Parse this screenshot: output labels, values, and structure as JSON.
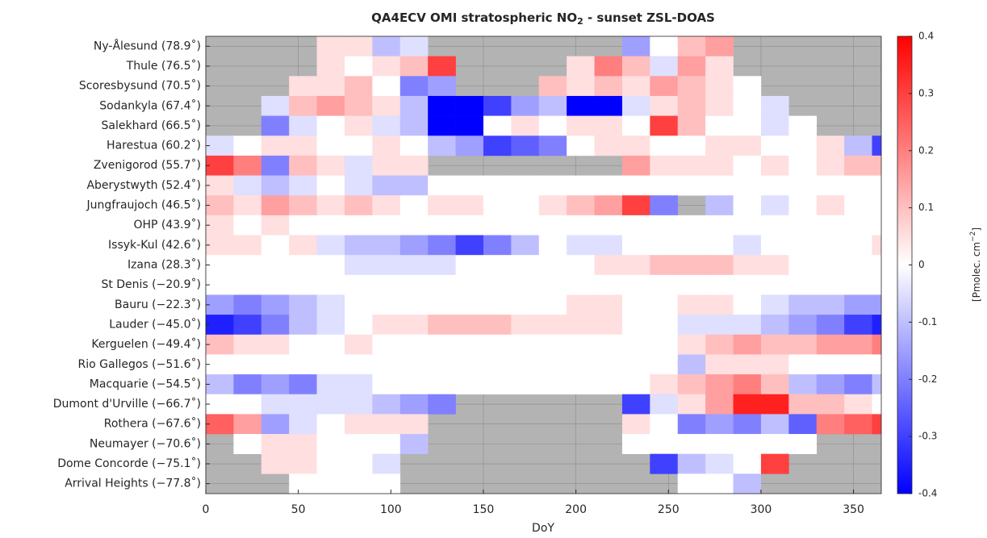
{
  "chart_data": {
    "type": "heatmap",
    "title": [
      "QA4ECV OMI stratospheric NO",
      "2",
      " - sunset ZSL-DOAS"
    ],
    "xlabel": "DoY",
    "colorbar_label": [
      "[Pmolec. cm",
      "−2",
      "]"
    ],
    "rows": [
      "Ny-Ålesund (78.9˚)",
      "Thule (76.5˚)",
      "Scoresbysund (70.5˚)",
      "Sodankyla (67.4˚)",
      "Salekhard (66.5˚)",
      "Harestua (60.2˚)",
      "Zvenigorod (55.7˚)",
      "Aberystwyth (52.4˚)",
      "Jungfraujoch (46.5˚)",
      "OHP (43.9˚)",
      "Issyk-Kul (42.6˚)",
      "Izana (28.3˚)",
      "St Denis (−20.9˚)",
      "Bauru (−22.3˚)",
      "Lauder (−45.0˚)",
      "Kerguelen (−49.4˚)",
      "Rio Gallegos (−51.6˚)",
      "Macquarie (−54.5˚)",
      "Dumont d'Urville (−66.7˚)",
      "Rothera (−67.6˚)",
      "Neumayer (−70.6˚)",
      "Dome Concorde (−75.1˚)",
      "Arrival Heights (−77.8˚)"
    ],
    "bins": [
      0,
      15,
      30,
      45,
      60,
      75,
      90,
      105,
      120,
      135,
      150,
      165,
      180,
      195,
      210,
      225,
      240,
      255,
      270,
      285,
      300,
      315,
      330,
      345,
      360,
      365
    ],
    "values": [
      [
        null,
        null,
        null,
        null,
        0.05,
        0.05,
        -0.1,
        -0.05,
        null,
        null,
        null,
        null,
        null,
        null,
        null,
        -0.15,
        0.0,
        0.1,
        0.15,
        null,
        null,
        null,
        null,
        null,
        null
      ],
      [
        null,
        null,
        null,
        null,
        0.05,
        0.0,
        0.05,
        0.1,
        0.3,
        null,
        null,
        null,
        null,
        0.05,
        0.2,
        0.1,
        -0.05,
        0.15,
        0.05,
        null,
        null,
        null,
        null,
        null,
        null
      ],
      [
        null,
        null,
        null,
        0.05,
        0.05,
        0.1,
        0.0,
        -0.2,
        -0.15,
        null,
        null,
        null,
        0.1,
        0.05,
        0.1,
        0.05,
        0.15,
        0.1,
        0.05,
        0.0,
        null,
        null,
        null,
        null,
        null
      ],
      [
        null,
        null,
        -0.05,
        0.1,
        0.15,
        0.1,
        0.05,
        -0.1,
        -0.4,
        -0.4,
        -0.3,
        -0.15,
        -0.1,
        -0.4,
        -0.4,
        -0.05,
        0.05,
        0.1,
        0.05,
        0.0,
        -0.05,
        null,
        null,
        null,
        null
      ],
      [
        null,
        null,
        -0.2,
        -0.05,
        0.0,
        0.05,
        -0.05,
        -0.1,
        -0.4,
        -0.4,
        0.0,
        0.05,
        0.0,
        0.05,
        0.05,
        0.0,
        0.3,
        0.1,
        0.0,
        0.0,
        -0.05,
        0.0,
        null,
        null,
        null
      ],
      [
        -0.05,
        0.0,
        0.05,
        0.05,
        0.0,
        0.0,
        0.05,
        0.0,
        -0.1,
        -0.15,
        -0.3,
        -0.25,
        -0.2,
        0.0,
        0.05,
        0.05,
        0.0,
        0.0,
        0.05,
        0.05,
        0.0,
        0.0,
        0.05,
        -0.1,
        -0.3
      ],
      [
        0.3,
        0.2,
        -0.2,
        0.1,
        0.05,
        -0.05,
        0.05,
        0.05,
        null,
        null,
        null,
        null,
        null,
        null,
        null,
        0.15,
        0.05,
        0.05,
        0.05,
        0.0,
        0.05,
        0.0,
        0.05,
        0.1,
        0.1
      ],
      [
        0.05,
        -0.05,
        -0.1,
        -0.05,
        0.0,
        -0.05,
        -0.1,
        -0.1,
        0.0,
        0.0,
        0.0,
        0.0,
        0.0,
        0.0,
        0.0,
        0.0,
        0.0,
        0.0,
        0.0,
        0.0,
        0.0,
        0.0,
        0.0,
        0.0,
        0.0
      ],
      [
        0.1,
        0.05,
        0.15,
        0.1,
        0.05,
        0.1,
        0.05,
        0.0,
        0.05,
        0.05,
        0.0,
        0.0,
        0.05,
        0.1,
        0.15,
        0.3,
        -0.2,
        null,
        -0.1,
        0.0,
        -0.05,
        0.0,
        0.05,
        0.0,
        0.0
      ],
      [
        0.05,
        0.0,
        0.05,
        0.0,
        0.0,
        0.0,
        0.0,
        0.0,
        0.0,
        0.0,
        0.0,
        0.0,
        0.0,
        0.0,
        0.0,
        0.0,
        0.0,
        0.0,
        0.0,
        0.0,
        0.0,
        0.0,
        0.0,
        0.0,
        0.0
      ],
      [
        0.05,
        0.05,
        0.0,
        0.05,
        -0.05,
        -0.1,
        -0.1,
        -0.15,
        -0.2,
        -0.3,
        -0.2,
        -0.1,
        0.0,
        -0.05,
        -0.05,
        0.0,
        0.0,
        0.0,
        0.0,
        -0.05,
        0.0,
        0.0,
        0.0,
        0.0,
        0.05
      ],
      [
        0.0,
        0.0,
        0.0,
        0.0,
        0.0,
        -0.05,
        -0.05,
        -0.05,
        -0.05,
        0.0,
        0.0,
        0.0,
        0.0,
        0.0,
        0.05,
        0.05,
        0.1,
        0.1,
        0.1,
        0.05,
        0.05,
        0.0,
        0.0,
        0.0,
        0.0
      ],
      [
        0.0,
        0.0,
        0.0,
        0.0,
        0.0,
        0.0,
        0.0,
        0.0,
        0.0,
        0.0,
        0.0,
        0.0,
        0.0,
        0.0,
        0.0,
        0.0,
        0.0,
        0.0,
        0.0,
        0.0,
        0.0,
        0.0,
        0.0,
        0.0,
        0.0
      ],
      [
        -0.15,
        -0.2,
        -0.15,
        -0.1,
        -0.05,
        0.0,
        0.0,
        0.0,
        0.0,
        0.0,
        0.0,
        0.0,
        0.0,
        0.05,
        0.05,
        0.0,
        0.0,
        0.05,
        0.05,
        0.0,
        -0.05,
        -0.1,
        -0.1,
        -0.15,
        -0.15
      ],
      [
        -0.35,
        -0.3,
        -0.2,
        -0.1,
        -0.05,
        0.0,
        0.05,
        0.05,
        0.1,
        0.1,
        0.1,
        0.05,
        0.05,
        0.05,
        0.05,
        0.0,
        0.0,
        -0.05,
        -0.05,
        -0.05,
        -0.1,
        -0.15,
        -0.2,
        -0.3,
        -0.35
      ],
      [
        0.1,
        0.05,
        0.05,
        0.0,
        0.0,
        0.05,
        0.0,
        0.0,
        0.0,
        0.0,
        0.0,
        0.0,
        0.0,
        0.0,
        0.0,
        0.0,
        0.0,
        0.05,
        0.1,
        0.15,
        0.1,
        0.1,
        0.15,
        0.15,
        0.2
      ],
      [
        0.0,
        0.0,
        0.0,
        0.0,
        0.0,
        0.0,
        0.0,
        0.0,
        0.0,
        0.0,
        0.0,
        0.0,
        0.0,
        0.0,
        0.0,
        0.0,
        0.0,
        -0.1,
        0.05,
        0.05,
        0.05,
        0.0,
        0.0,
        0.0,
        0.0
      ],
      [
        -0.1,
        -0.2,
        -0.15,
        -0.2,
        -0.05,
        -0.05,
        0.0,
        0.0,
        0.0,
        0.0,
        0.0,
        0.0,
        0.0,
        0.0,
        0.0,
        0.0,
        0.05,
        0.1,
        0.15,
        0.2,
        0.1,
        -0.1,
        -0.15,
        -0.2,
        -0.1
      ],
      [
        0.0,
        0.0,
        -0.05,
        -0.05,
        -0.05,
        -0.05,
        -0.1,
        -0.15,
        -0.2,
        null,
        null,
        null,
        null,
        null,
        null,
        -0.3,
        -0.05,
        0.05,
        0.15,
        0.35,
        0.35,
        0.1,
        0.1,
        0.05,
        0.0
      ],
      [
        0.25,
        0.15,
        -0.15,
        -0.05,
        0.0,
        0.05,
        0.05,
        0.05,
        null,
        null,
        null,
        null,
        null,
        null,
        null,
        0.05,
        0.0,
        -0.2,
        -0.15,
        -0.2,
        -0.1,
        -0.25,
        0.2,
        0.25,
        0.3
      ],
      [
        null,
        0.0,
        0.05,
        0.05,
        0.0,
        0.0,
        0.0,
        -0.1,
        null,
        null,
        null,
        null,
        null,
        null,
        null,
        0.0,
        0.0,
        0.0,
        0.0,
        0.0,
        0.0,
        0.0,
        null,
        null,
        null
      ],
      [
        null,
        null,
        0.05,
        0.05,
        0.0,
        0.0,
        -0.05,
        null,
        null,
        null,
        null,
        null,
        null,
        null,
        null,
        null,
        -0.3,
        -0.1,
        -0.05,
        0.0,
        0.3,
        null,
        null,
        null,
        null
      ],
      [
        null,
        null,
        null,
        0.0,
        0.0,
        0.0,
        0.0,
        null,
        null,
        null,
        null,
        null,
        null,
        null,
        null,
        null,
        null,
        0.0,
        0.0,
        -0.1,
        null,
        null,
        null,
        null,
        null
      ]
    ],
    "xlim": [
      0,
      365
    ],
    "xticks": [
      0,
      50,
      100,
      150,
      200,
      250,
      300,
      350
    ],
    "clim": [
      -0.4,
      0.4
    ],
    "cticks": [
      -0.4,
      -0.3,
      -0.2,
      -0.1,
      0,
      0.1,
      0.2,
      0.3,
      0.4
    ],
    "colormap": [
      "#0000ff",
      "#ffffff",
      "#ff0000"
    ],
    "missing_color": "#b3b3b3",
    "grid": true
  }
}
